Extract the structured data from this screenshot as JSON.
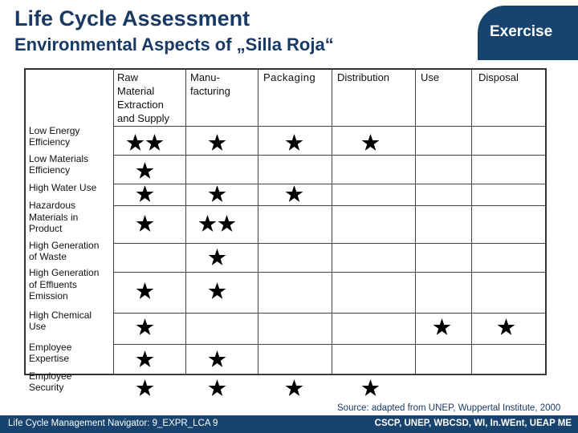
{
  "header": {
    "title": "Life Cycle Assessment",
    "subtitle": "Environmental Aspects of „Silla Roja“",
    "badge": "Exercise"
  },
  "table": {
    "columns": [
      "Raw Material Extraction and Supply",
      "Manu- facturing",
      "Packaging",
      "Distribution",
      "Use",
      "Disposal"
    ],
    "column_lines": [
      [
        "Raw",
        "Material",
        "Extraction",
        "and Supply"
      ],
      [
        "Manu-",
        "facturing"
      ],
      [
        "Packaging"
      ],
      [
        "Distribution"
      ],
      [
        "Use"
      ],
      [
        "Disposal"
      ]
    ],
    "rows": [
      {
        "label": "Low Energy Efficiency",
        "lines": [
          "Low Energy",
          "Efficiency"
        ],
        "stars": [
          2,
          1,
          1,
          1,
          0,
          0
        ]
      },
      {
        "label": "Low Materials Efficiency",
        "lines": [
          "Low Materials",
          "Efficiency"
        ],
        "stars": [
          1,
          0,
          0,
          0,
          0,
          0
        ]
      },
      {
        "label": "High Water Use",
        "lines": [
          "High Water Use"
        ],
        "stars": [
          1,
          1,
          1,
          0,
          0,
          0
        ]
      },
      {
        "label": "Hazardous Materials in Product",
        "lines": [
          "Hazardous",
          "Materials in",
          "Product"
        ],
        "stars": [
          1,
          2,
          0,
          0,
          0,
          0
        ]
      },
      {
        "label": "High Generation of Waste",
        "lines": [
          "High Generation",
          "of Waste"
        ],
        "stars": [
          0,
          1,
          0,
          0,
          0,
          0
        ]
      },
      {
        "label": "High Generation of Effluents Emission",
        "lines": [
          "High Generation",
          "of Effluents",
          "Emission"
        ],
        "stars": [
          1,
          1,
          0,
          0,
          0,
          0
        ]
      },
      {
        "label": "High Chemical Use",
        "lines": [
          "High Chemical",
          "Use"
        ],
        "stars": [
          1,
          0,
          0,
          0,
          1,
          1
        ]
      },
      {
        "label": "Employee Expertise",
        "lines": [
          "Employee",
          "Expertise"
        ],
        "stars": [
          1,
          1,
          0,
          0,
          0,
          0
        ]
      },
      {
        "label": "Employee Security",
        "lines": [
          "Employee",
          "Security"
        ],
        "stars": [
          1,
          1,
          1,
          1,
          0,
          0
        ]
      }
    ],
    "star_icon": "star-icon"
  },
  "source": "Source: adapted from UNEP, Wuppertal Institute, 2000",
  "footer": {
    "left": "Life Cycle Management Navigator: 9_EXPR_LCA 9",
    "right": "CSCP, UNEP, WBCSD, WI, In.WEnt, UEAP ME"
  },
  "colors": {
    "brand": "#17436e",
    "title": "#1a3a66",
    "star": "#000000"
  }
}
